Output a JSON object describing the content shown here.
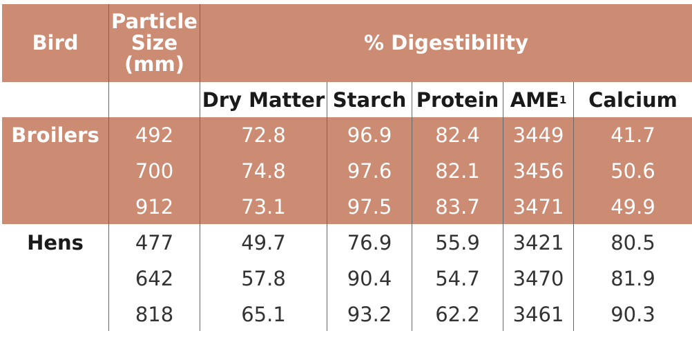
{
  "header": {
    "bird": "Bird",
    "particle_size": [
      "Particle",
      "Size",
      "(mm)"
    ],
    "digestibility": "% Digestibility"
  },
  "subheaders": [
    {
      "text": "Dry Matter",
      "sup": ""
    },
    {
      "text": "Starch",
      "sup": ""
    },
    {
      "text": "Protein",
      "sup": ""
    },
    {
      "text": "AME",
      "sup": "1"
    },
    {
      "text": "Calcium",
      "sup": ""
    }
  ],
  "groups": [
    {
      "bird": "Broilers",
      "rows": [
        [
          "492",
          "72.8",
          "96.9",
          "82.4",
          "3449",
          "41.7"
        ],
        [
          "700",
          "74.8",
          "97.6",
          "82.1",
          "3456",
          "50.6"
        ],
        [
          "912",
          "73.1",
          "97.5",
          "83.7",
          "3471",
          "49.9"
        ]
      ]
    },
    {
      "bird": "Hens",
      "rows": [
        [
          "477",
          "49.7",
          "76.9",
          "55.9",
          "3421",
          "80.5"
        ],
        [
          "642",
          "57.8",
          "90.4",
          "54.7",
          "3470",
          "81.9"
        ],
        [
          "818",
          "65.1",
          "93.2",
          "62.2",
          "3461",
          "90.3"
        ]
      ]
    }
  ],
  "colors": {
    "band": "#cc8b73",
    "rule": "#666666"
  }
}
